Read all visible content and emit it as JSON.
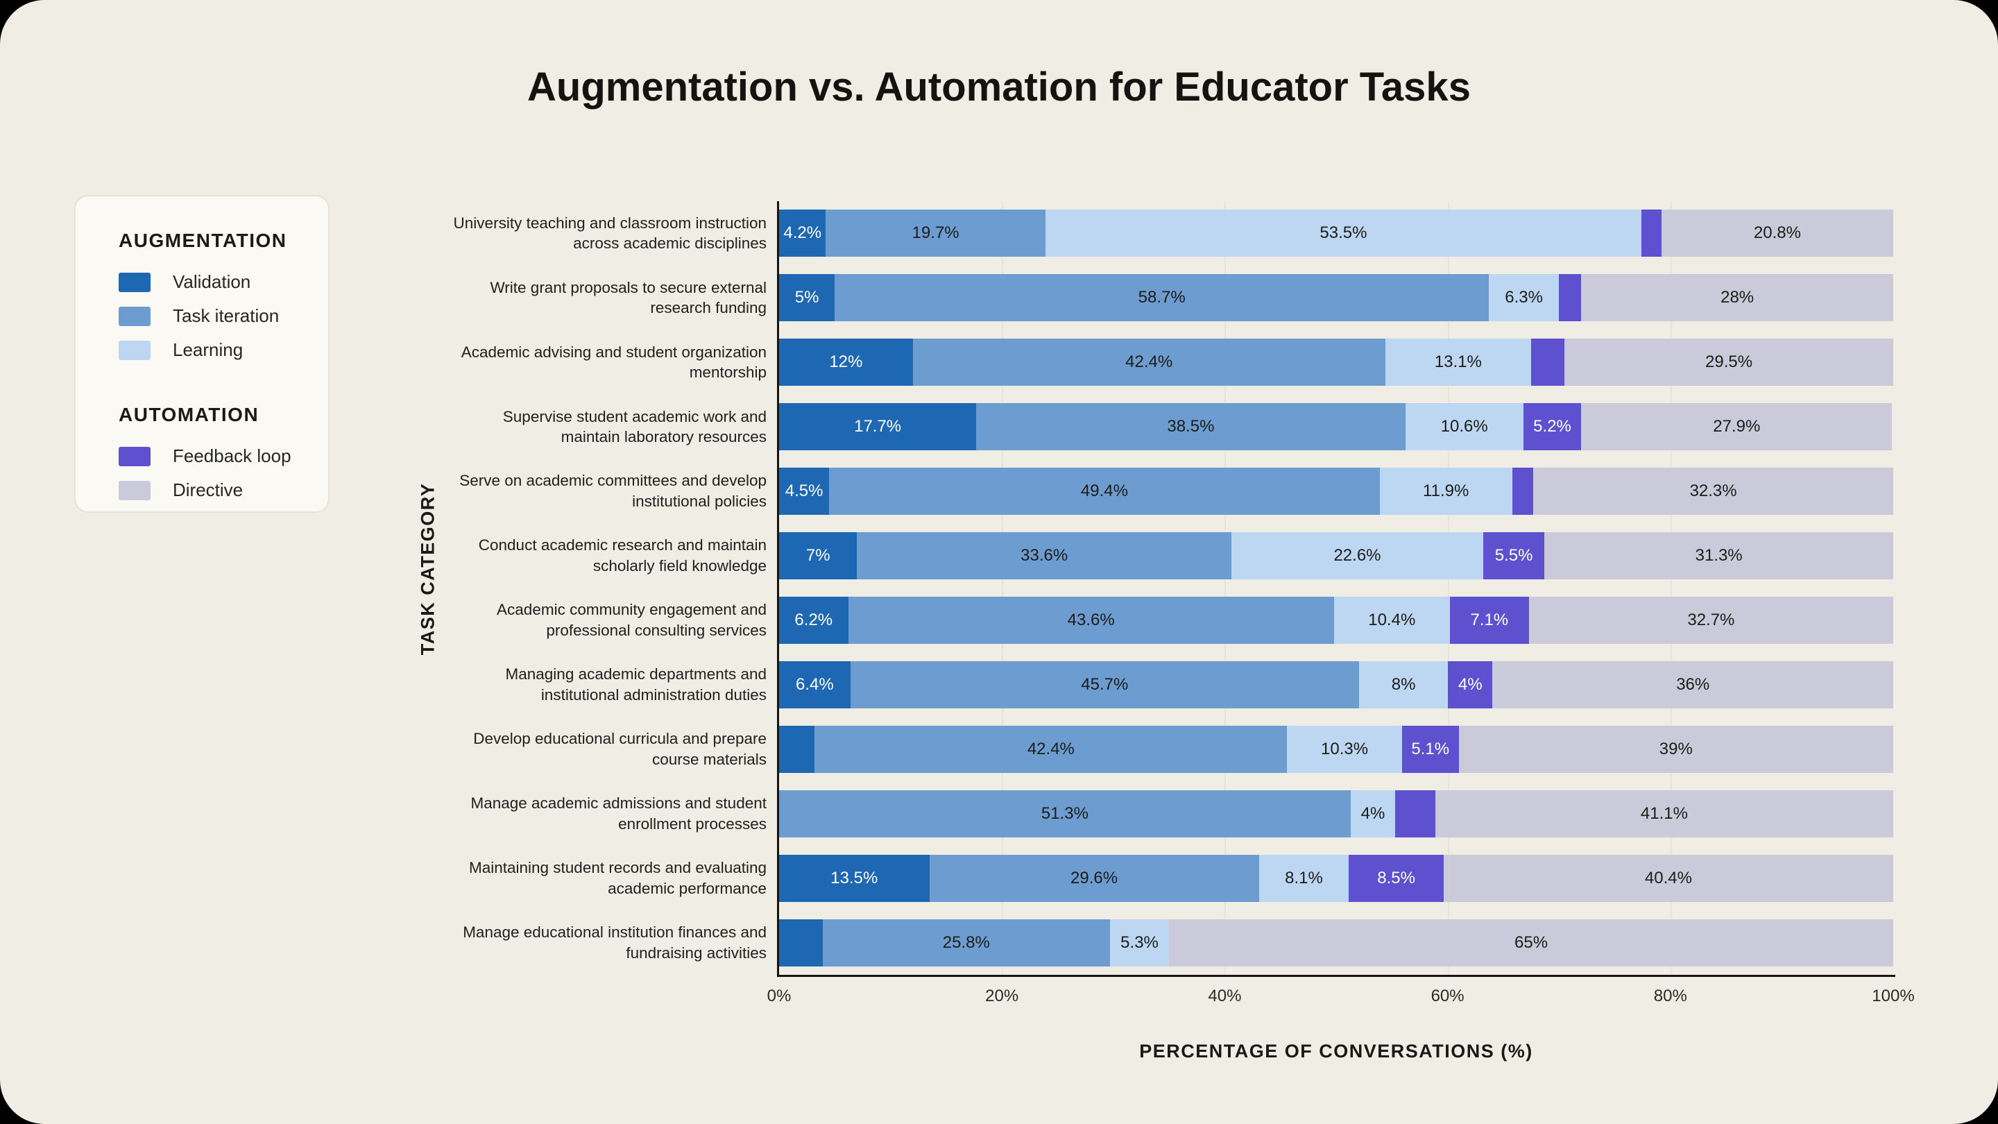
{
  "page": {
    "title": "Augmentation vs. Automation for Educator Tasks",
    "background_color": "#f0ede5",
    "outer_color": "#000000"
  },
  "legend": {
    "groups": [
      {
        "title": "AUGMENTATION",
        "items": [
          {
            "label": "Validation",
            "color": "#1e67b3"
          },
          {
            "label": "Task iteration",
            "color": "#6d9cd0"
          },
          {
            "label": "Learning",
            "color": "#bdd7f3"
          }
        ]
      },
      {
        "title": "AUTOMATION",
        "items": [
          {
            "label": "Feedback loop",
            "color": "#5e51d0"
          },
          {
            "label": "Directive",
            "color": "#cbcada"
          }
        ]
      }
    ]
  },
  "chart_data": {
    "type": "bar",
    "orientation": "horizontal",
    "stacked": true,
    "title": "Augmentation vs. Automation for Educator Tasks",
    "xlabel": "PERCENTAGE OF CONVERSATIONS (%)",
    "ylabel": "TASK CATEGORY",
    "xlim": [
      0,
      100
    ],
    "grid": "vertical gridlines at 20, 40, 60, 80",
    "legend_position": "left",
    "x_ticks": [
      {
        "value": 0,
        "label": "0%"
      },
      {
        "value": 20,
        "label": "20%"
      },
      {
        "value": 40,
        "label": "40%"
      },
      {
        "value": 60,
        "label": "60%"
      },
      {
        "value": 80,
        "label": "80%"
      },
      {
        "value": 100,
        "label": "100%"
      }
    ],
    "series": [
      {
        "name": "Validation",
        "group": "AUGMENTATION",
        "color": "#1e67b3",
        "label_color": "#ffffff"
      },
      {
        "name": "Task iteration",
        "group": "AUGMENTATION",
        "color": "#6d9cd0",
        "label_color": "#1c1c19"
      },
      {
        "name": "Learning",
        "group": "AUGMENTATION",
        "color": "#bdd7f3",
        "label_color": "#1c1c19"
      },
      {
        "name": "Feedback loop",
        "group": "AUTOMATION",
        "color": "#5e51d0",
        "label_color": "#ffffff"
      },
      {
        "name": "Directive",
        "group": "AUTOMATION",
        "color": "#cbcada",
        "label_color": "#1c1c19"
      }
    ],
    "categories": [
      "University teaching and classroom instruction across academic disciplines",
      "Write grant proposals to secure external research funding",
      "Academic advising and student organization mentorship",
      "Supervise student academic work and maintain laboratory resources",
      "Serve on academic committees and develop institutional policies",
      "Conduct academic research and maintain scholarly field knowledge",
      "Academic community engagement and professional consulting services",
      "Managing academic departments and institutional administration duties",
      "Develop educational curricula and prepare course materials",
      "Manage academic admissions and student enrollment processes",
      "Maintaining student records and evaluating academic performance",
      "Manage educational institution finances and fundraising activities"
    ],
    "rows": [
      {
        "category": "University teaching and classroom instruction across academic disciplines",
        "values": [
          4.2,
          19.7,
          53.5,
          1.8,
          20.8
        ],
        "labels": [
          "4.2%",
          "19.7%",
          "53.5%",
          null,
          "20.8%"
        ]
      },
      {
        "category": "Write grant proposals to secure external research funding",
        "values": [
          5,
          58.7,
          6.3,
          2,
          28
        ],
        "labels": [
          "5%",
          "58.7%",
          "6.3%",
          null,
          "28%"
        ]
      },
      {
        "category": "Academic advising and student organization mentorship",
        "values": [
          12,
          42.4,
          13.1,
          3,
          29.5
        ],
        "labels": [
          "12%",
          "42.4%",
          "13.1%",
          null,
          "29.5%"
        ]
      },
      {
        "category": "Supervise student academic work and maintain laboratory resources",
        "values": [
          17.7,
          38.5,
          10.6,
          5.2,
          27.9
        ],
        "labels": [
          "17.7%",
          "38.5%",
          "10.6%",
          "5.2%",
          "27.9%"
        ]
      },
      {
        "category": "Serve on academic committees and develop institutional policies",
        "values": [
          4.5,
          49.4,
          11.9,
          1.9,
          32.3
        ],
        "labels": [
          "4.5%",
          "49.4%",
          "11.9%",
          null,
          "32.3%"
        ]
      },
      {
        "category": "Conduct academic research and maintain scholarly field knowledge",
        "values": [
          7,
          33.6,
          22.6,
          5.5,
          31.3
        ],
        "labels": [
          "7%",
          "33.6%",
          "22.6%",
          "5.5%",
          "31.3%"
        ]
      },
      {
        "category": "Academic community engagement and professional consulting services",
        "values": [
          6.2,
          43.6,
          10.4,
          7.1,
          32.7
        ],
        "labels": [
          "6.2%",
          "43.6%",
          "10.4%",
          "7.1%",
          "32.7%"
        ]
      },
      {
        "category": "Managing academic departments and institutional administration duties",
        "values": [
          6.4,
          45.7,
          8,
          4,
          36
        ],
        "labels": [
          "6.4%",
          "45.7%",
          "8%",
          "4%",
          "36%"
        ]
      },
      {
        "category": "Develop educational curricula and prepare course materials",
        "values": [
          3.2,
          42.4,
          10.3,
          5.1,
          39
        ],
        "labels": [
          null,
          "42.4%",
          "10.3%",
          "5.1%",
          "39%"
        ]
      },
      {
        "category": "Manage academic admissions and student enrollment processes",
        "values": [
          0,
          51.3,
          4,
          3.6,
          41.1
        ],
        "labels": [
          null,
          "51.3%",
          "4%",
          null,
          "41.1%"
        ]
      },
      {
        "category": "Maintaining student records and evaluating academic performance",
        "values": [
          13.5,
          29.6,
          8.1,
          8.5,
          40.4
        ],
        "labels": [
          "13.5%",
          "29.6%",
          "8.1%",
          "8.5%",
          "40.4%"
        ]
      },
      {
        "category": "Manage educational institution finances and fundraising activities",
        "values": [
          3.9,
          25.8,
          5.3,
          0,
          65
        ],
        "labels": [
          null,
          "25.8%",
          "5.3%",
          null,
          "65%"
        ]
      }
    ]
  }
}
